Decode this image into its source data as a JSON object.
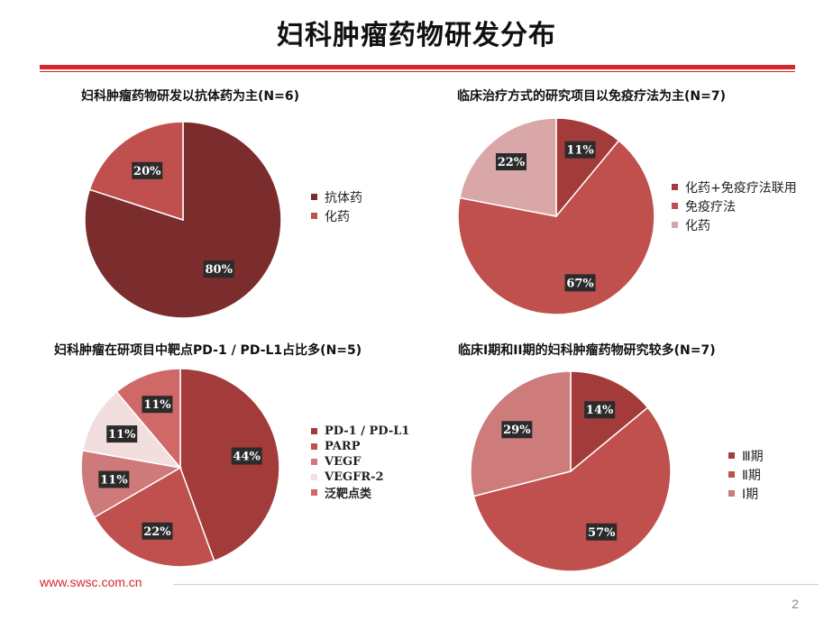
{
  "page": {
    "title": "妇科肿瘤药物研发分布",
    "footer_url": "www.swsc.com.cn",
    "page_number": "2",
    "accent_color": "#d6262b"
  },
  "chart_data": [
    {
      "type": "pie",
      "title": "妇科肿瘤药物研发以抗体药为主(N=6)",
      "slices": [
        {
          "label": "抗体药",
          "value": 80,
          "display": "80%",
          "color": "#7b2c2c"
        },
        {
          "label": "化药",
          "value": 20,
          "display": "20%",
          "color": "#c0504d"
        }
      ],
      "legend_position": "right"
    },
    {
      "type": "pie",
      "title": "临床治疗方式的研究项目以免疫疗法为主(N=7)",
      "slices": [
        {
          "label": "化药+免疫疗法联用",
          "value": 11,
          "display": "11%",
          "color": "#a33b3b"
        },
        {
          "label": "免疫疗法",
          "value": 67,
          "display": "67%",
          "color": "#c0504d"
        },
        {
          "label": "化药",
          "value": 22,
          "display": "22%",
          "color": "#d9a7a7"
        }
      ],
      "legend_position": "right"
    },
    {
      "type": "pie",
      "title": "妇科肿瘤在研项目中靶点PD-1 / PD-L1占比多(N=5)",
      "slices": [
        {
          "label": "PD-1 / PD-L1",
          "value": 44,
          "display": "44%",
          "color": "#a33b3b"
        },
        {
          "label": "PARP",
          "value": 22,
          "display": "22%",
          "color": "#c0504d"
        },
        {
          "label": "VEGF",
          "value": 11,
          "display": "11%",
          "color": "#cf7a7a"
        },
        {
          "label": "VEGFR-2",
          "value": 11,
          "display": "11%",
          "color": "#f2dede"
        },
        {
          "label": "泛靶点类",
          "value": 11,
          "display": "11%",
          "color": "#d06868"
        }
      ],
      "legend_position": "right"
    },
    {
      "type": "pie",
      "title": "临床I期和II期的妇科肿瘤药物研究较多(N=7)",
      "slices": [
        {
          "label": "Ⅲ期",
          "value": 14,
          "display": "14%",
          "color": "#a33b3b"
        },
        {
          "label": "Ⅱ期",
          "value": 57,
          "display": "57%",
          "color": "#c0504d"
        },
        {
          "label": "Ⅰ期",
          "value": 29,
          "display": "29%",
          "color": "#cd7b7b"
        }
      ],
      "legend_position": "right"
    }
  ]
}
